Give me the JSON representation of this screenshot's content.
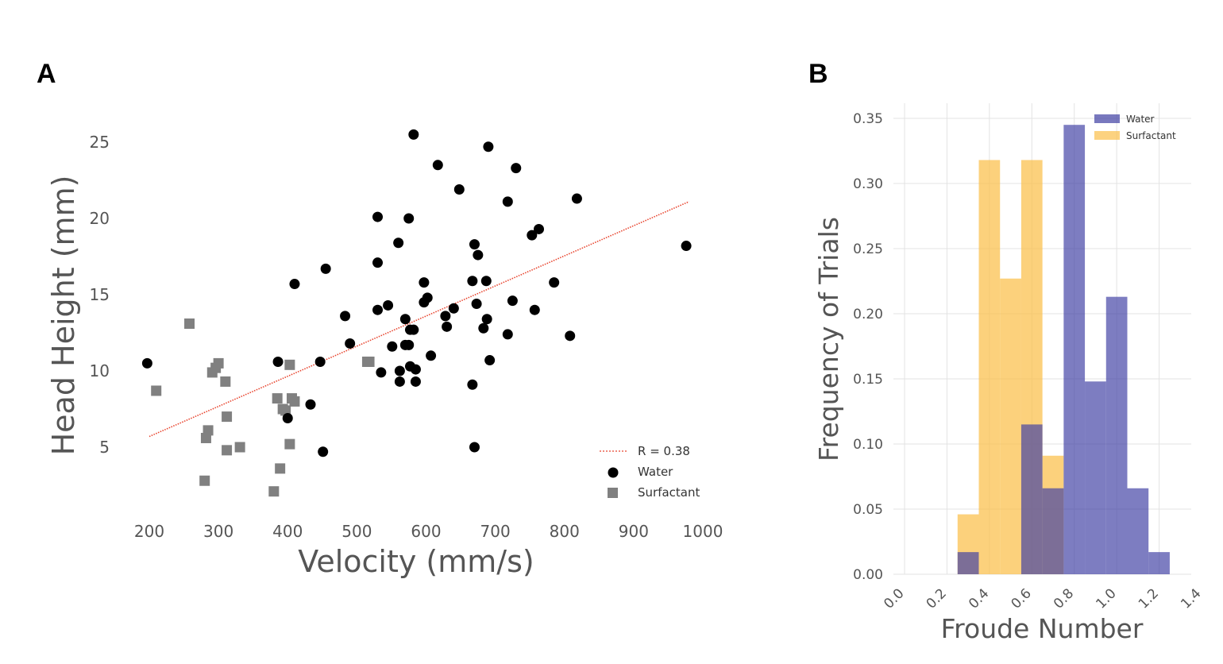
{
  "panels": {
    "a_label": "A",
    "b_label": "B"
  },
  "colors": {
    "water_point": "#000000",
    "surfactant_point": "#808080",
    "fit_line": "#e8442e",
    "water_bar": "#3f3fa3",
    "surfactant_bar": "#fbbf4a",
    "grid": "#e3e3e3",
    "axis_text": "#555555"
  },
  "chart_data": [
    {
      "type": "scatter",
      "title": "",
      "xlabel": "Velocity (mm/s)",
      "ylabel": "Head Height (mm)",
      "xlim": [
        180,
        1000
      ],
      "ylim": [
        1,
        26.5
      ],
      "xticks": [
        200,
        300,
        400,
        500,
        600,
        700,
        800,
        900,
        1000
      ],
      "yticks": [
        5,
        10,
        15,
        20,
        25
      ],
      "grid": false,
      "legend_position": "bottom-right",
      "fit": {
        "label": "R = 0.38",
        "x": [
          200,
          980
        ],
        "y": [
          5.7,
          21.1
        ]
      },
      "series": [
        {
          "name": "Water",
          "marker": "circle",
          "points": [
            [
              197,
              10.5
            ],
            [
              386,
              10.6
            ],
            [
              400,
              6.9
            ],
            [
              410,
              15.7
            ],
            [
              433,
              7.8
            ],
            [
              447,
              10.6
            ],
            [
              451,
              4.7
            ],
            [
              455,
              16.7
            ],
            [
              483,
              13.6
            ],
            [
              490,
              11.8
            ],
            [
              530,
              20.1
            ],
            [
              530,
              17.1
            ],
            [
              530,
              14
            ],
            [
              535,
              9.9
            ],
            [
              545,
              14.3
            ],
            [
              551,
              11.6
            ],
            [
              560,
              18.4
            ],
            [
              562,
              9.3
            ],
            [
              562,
              10.0
            ],
            [
              570,
              13.4
            ],
            [
              570,
              11.7
            ],
            [
              575,
              11.7
            ],
            [
              575,
              20.0
            ],
            [
              577,
              12.7
            ],
            [
              577,
              10.3
            ],
            [
              582,
              12.7
            ],
            [
              582,
              25.5
            ],
            [
              585,
              10.1
            ],
            [
              585,
              9.3
            ],
            [
              597,
              14.5
            ],
            [
              597,
              15.8
            ],
            [
              602,
              14.8
            ],
            [
              607,
              11.0
            ],
            [
              617,
              23.5
            ],
            [
              628,
              13.6
            ],
            [
              630,
              12.9
            ],
            [
              640,
              14.1
            ],
            [
              648,
              21.9
            ],
            [
              667,
              9.1
            ],
            [
              667,
              15.9
            ],
            [
              670,
              18.3
            ],
            [
              670,
              5.0
            ],
            [
              673,
              14.4
            ],
            [
              675,
              17.6
            ],
            [
              683,
              12.8
            ],
            [
              687,
              15.9
            ],
            [
              688,
              13.4
            ],
            [
              690,
              24.7
            ],
            [
              692,
              10.7
            ],
            [
              718,
              21.1
            ],
            [
              718,
              12.4
            ],
            [
              725,
              14.6
            ],
            [
              730,
              23.3
            ],
            [
              753,
              18.9
            ],
            [
              757,
              14.0
            ],
            [
              763,
              19.3
            ],
            [
              785,
              15.8
            ],
            [
              808,
              12.3
            ],
            [
              818,
              21.3
            ],
            [
              976,
              18.2
            ]
          ]
        },
        {
          "name": "Surfactant",
          "marker": "square",
          "points": [
            [
              210,
              8.7
            ],
            [
              258,
              13.1
            ],
            [
              280,
              2.8
            ],
            [
              282,
              5.6
            ],
            [
              285,
              6.1
            ],
            [
              291,
              9.9
            ],
            [
              296,
              10.2
            ],
            [
              300,
              10.5
            ],
            [
              310,
              9.3
            ],
            [
              312,
              4.8
            ],
            [
              312,
              7.0
            ],
            [
              331,
              5.0
            ],
            [
              380,
              2.1
            ],
            [
              385,
              8.2
            ],
            [
              389,
              3.6
            ],
            [
              393,
              7.5
            ],
            [
              397,
              7.4
            ],
            [
              403,
              5.2
            ],
            [
              403,
              10.4
            ],
            [
              406,
              8.2
            ],
            [
              410,
              8.0
            ],
            [
              515,
              10.6
            ],
            [
              518,
              10.6
            ]
          ]
        }
      ]
    },
    {
      "type": "bar",
      "title": "",
      "xlabel": "Froude Number",
      "ylabel": "Frequency of Trials",
      "xlim": [
        0.0,
        1.4
      ],
      "ylim": [
        0.0,
        0.36
      ],
      "xticks": [
        "0.0",
        "0.2",
        "0.4",
        "0.6",
        "0.8",
        "1.0",
        "1.2",
        "1.4"
      ],
      "yticks": [
        "0.00",
        "0.05",
        "0.10",
        "0.15",
        "0.20",
        "0.25",
        "0.30",
        "0.35"
      ],
      "grid": true,
      "legend_position": "top-right",
      "bin_width": 0.1,
      "series": [
        {
          "name": "Water",
          "bin_starts": [
            0.75,
            0.85,
            0.95,
            1.05,
            1.15
          ],
          "values": [
            0.345,
            0.148,
            0.213,
            0.066,
            0.017
          ]
        },
        {
          "name": "Surfactant",
          "bin_starts": [
            0.25,
            0.35,
            0.45,
            0.55,
            0.65
          ],
          "values": [
            0.046,
            0.318,
            0.227,
            0.318,
            0.091
          ]
        },
        {
          "name": "Water",
          "bin_starts": [
            0.25,
            0.55,
            0.65
          ],
          "values": [
            0.017,
            0.115,
            0.066
          ]
        }
      ]
    }
  ]
}
